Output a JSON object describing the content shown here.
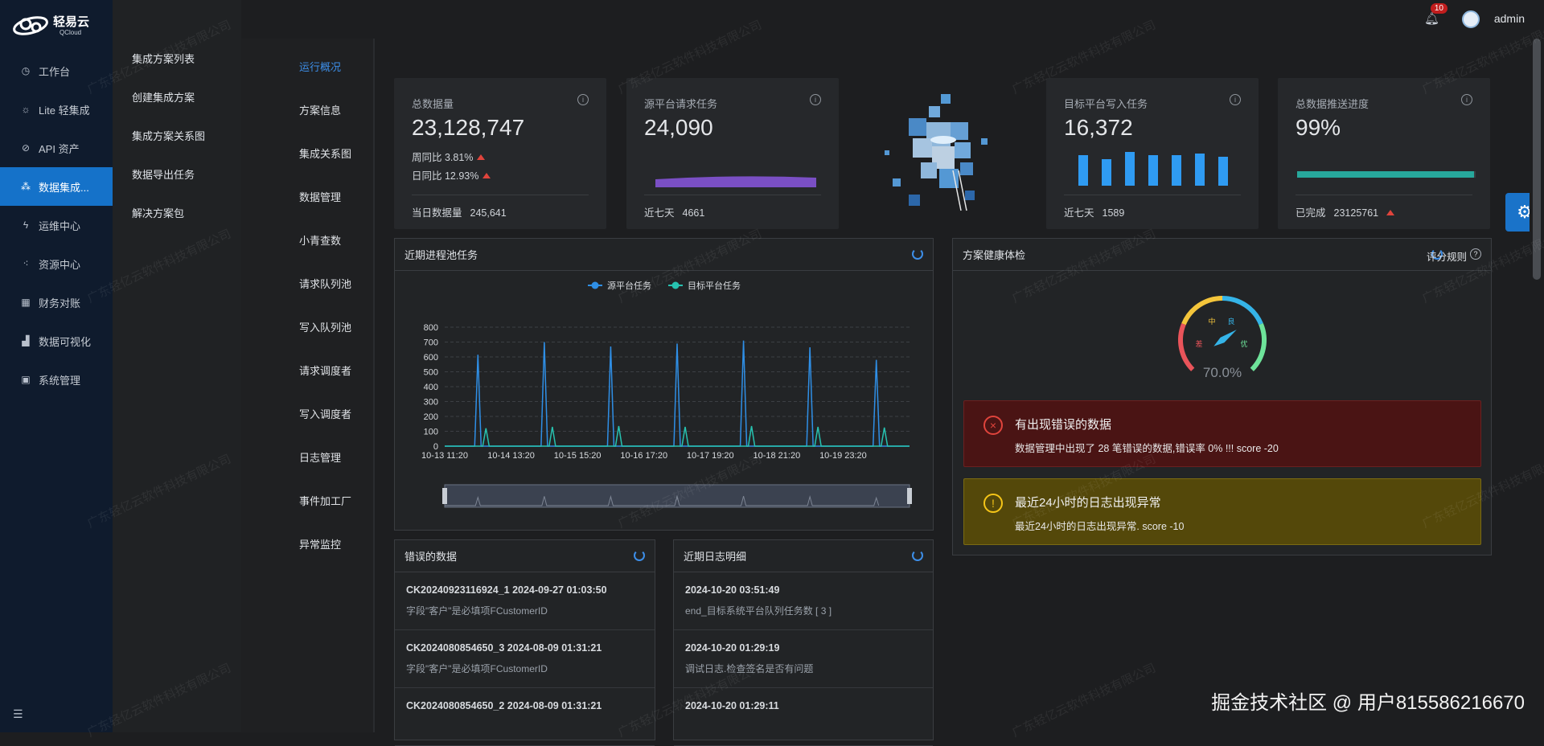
{
  "app": {
    "logo_text": "轻易云",
    "logo_sub": "QCloud"
  },
  "sidebar": {
    "items": [
      {
        "label": "工作台",
        "icon": "clock-icon"
      },
      {
        "label": "Lite 轻集成",
        "icon": "bulb-icon"
      },
      {
        "label": "API 资产",
        "icon": "compass-icon"
      },
      {
        "label": "数据集成...",
        "icon": "share-icon",
        "active": true
      },
      {
        "label": "运维中心",
        "icon": "bolt-icon"
      },
      {
        "label": "资源中心",
        "icon": "nodes-icon"
      },
      {
        "label": "财务对账",
        "icon": "calc-icon"
      },
      {
        "label": "数据可视化",
        "icon": "chart-icon"
      },
      {
        "label": "系统管理",
        "icon": "grid-icon"
      }
    ]
  },
  "subside": {
    "items": [
      "集成方案列表",
      "创建集成方案",
      "集成方案关系图",
      "数据导出任务",
      "解决方案包"
    ]
  },
  "header": {
    "badge": "10",
    "username": "admin"
  },
  "tabs": [
    "运行概况",
    "方案信息",
    "集成关系图",
    "数据管理",
    "小青查数",
    "请求队列池",
    "写入队列池",
    "请求调度者",
    "写入调度者",
    "日志管理",
    "事件加工厂",
    "异常监控"
  ],
  "kpi": {
    "total": {
      "title": "总数据量",
      "value": "23,128,747",
      "week": "周同比 3.81%",
      "day": "日同比 12.93%",
      "foot_label": "当日数据量",
      "foot_value": "245,641"
    },
    "source": {
      "title": "源平台请求任务",
      "value": "24,090",
      "foot_label": "近七天",
      "foot_value": "4661"
    },
    "target": {
      "title": "目标平台写入任务",
      "value": "16,372",
      "foot_label": "近七天",
      "foot_value": "1589"
    },
    "progress": {
      "title": "总数据推送进度",
      "value": "99%",
      "foot_label": "已完成",
      "foot_value": "23125761",
      "percent": 99
    }
  },
  "chart_panel": {
    "title": "近期进程池任务"
  },
  "chart_data": {
    "type": "line",
    "legend_position": "top-center",
    "ylim": [
      0,
      800
    ],
    "yticks": [
      "800",
      "700",
      "600",
      "500",
      "400",
      "300",
      "200",
      "100",
      "0"
    ],
    "xticks": [
      "10-13 11:20",
      "10-14 13:20",
      "10-15 15:20",
      "10-16 17:20",
      "10-17 19:20",
      "10-18 21:20",
      "10-19 23:20"
    ],
    "series": [
      {
        "name": "源平台任务",
        "color": "#2f8fe6",
        "peaks": [
          615,
          700,
          670,
          690,
          710,
          665,
          580
        ]
      },
      {
        "name": "目标平台任务",
        "color": "#27c2b0",
        "peaks": [
          120,
          130,
          135,
          130,
          135,
          130,
          125
        ]
      }
    ]
  },
  "health": {
    "title": "方案健康体检",
    "rule_label": "评分规则",
    "score": "70.0%",
    "score_value": 70,
    "gauge_labels": {
      "bad": "差",
      "mid": "中",
      "good": "良",
      "excellent": "优"
    },
    "alerts": [
      {
        "title": "有出现错误的数据",
        "desc": "数据管理中出现了 28 笔错误的数据,错误率 0% !!! score -20"
      },
      {
        "title": "最近24小时的日志出现异常",
        "desc": "最近24小时的日志出现异常. score -10"
      }
    ]
  },
  "errors": {
    "title": "错误的数据",
    "rows": [
      {
        "title": "CK20240923116924_1 2024-09-27 01:03:50",
        "desc": "字段\"客户\"是必填项FCustomerID"
      },
      {
        "title": "CK2024080854650_3 2024-08-09 01:31:21",
        "desc": "字段\"客户\"是必填项FCustomerID"
      },
      {
        "title": "CK2024080854650_2 2024-08-09 01:31:21",
        "desc": ""
      }
    ]
  },
  "logs": {
    "title": "近期日志明细",
    "rows": [
      {
        "title": "2024-10-20 03:51:49",
        "desc": "end_目标系统平台队列任务数 [ 3 ]"
      },
      {
        "title": "2024-10-20 01:29:19",
        "desc": "调试日志.检查签名是否有问题"
      },
      {
        "title": "2024-10-20 01:29:11",
        "desc": ""
      }
    ]
  },
  "watermark": "广东轻亿云软件科技有限公司",
  "corner_mark": "掘金技术社区 @ 用户815586216670"
}
